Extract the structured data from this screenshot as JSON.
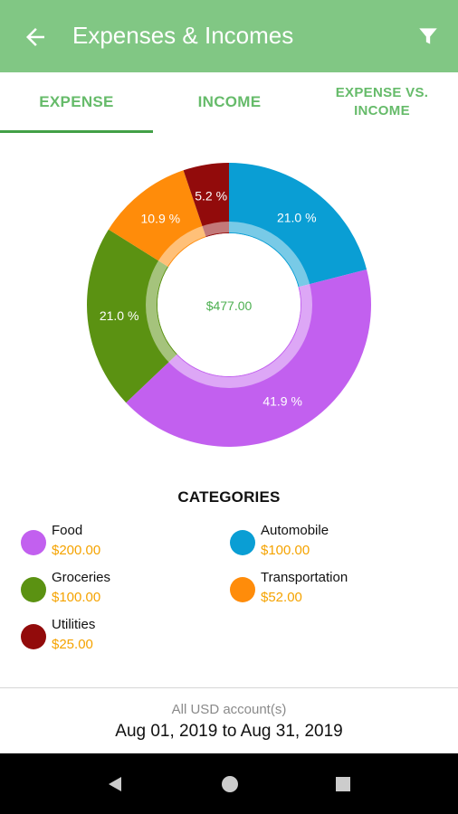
{
  "app_bar": {
    "title": "Expenses & Incomes",
    "back_icon": "arrow-left-icon",
    "filter_icon": "filter-icon",
    "color": "#81c784"
  },
  "tabs": [
    {
      "label": "EXPENSE",
      "selected": true
    },
    {
      "label": "INCOME",
      "selected": false
    },
    {
      "label_line1": "EXPENSE VS.",
      "label_line2": "INCOME",
      "selected": false
    }
  ],
  "chart_data": {
    "type": "pie",
    "style": "donut",
    "center_label": "$477.00",
    "slices": [
      {
        "category": "Automobile",
        "percent": 21.0,
        "label": "21.0 %",
        "value": 100.0,
        "color": "#0a9ed4"
      },
      {
        "category": "Food",
        "percent": 41.9,
        "label": "41.9 %",
        "value": 200.0,
        "color": "#c260ef"
      },
      {
        "category": "Groceries",
        "percent": 21.0,
        "label": "21.0 %",
        "value": 100.0,
        "color": "#5b9212"
      },
      {
        "category": "Transportation",
        "percent": 10.9,
        "label": "10.9 %",
        "value": 52.0,
        "color": "#ff8c0a"
      },
      {
        "category": "Utilities",
        "percent": 5.2,
        "label": "5.2 %",
        "value": 25.0,
        "color": "#920b0b"
      }
    ]
  },
  "categories": {
    "title": "CATEGORIES",
    "items": [
      {
        "name": "Food",
        "amount": "$200.00",
        "color": "#c260ef"
      },
      {
        "name": "Automobile",
        "amount": "$100.00",
        "color": "#0a9ed4"
      },
      {
        "name": "Groceries",
        "amount": "$100.00",
        "color": "#5b9212"
      },
      {
        "name": "Transportation",
        "amount": "$52.00",
        "color": "#ff8c0a"
      },
      {
        "name": "Utilities",
        "amount": "$25.00",
        "color": "#920b0b"
      }
    ]
  },
  "footer": {
    "account": "All USD account(s)",
    "date_range": "Aug 01, 2019 to Aug 31, 2019"
  },
  "system_nav": {
    "back_icon": "triangle-back-icon",
    "home_icon": "circle-home-icon",
    "recents_icon": "square-recents-icon"
  }
}
